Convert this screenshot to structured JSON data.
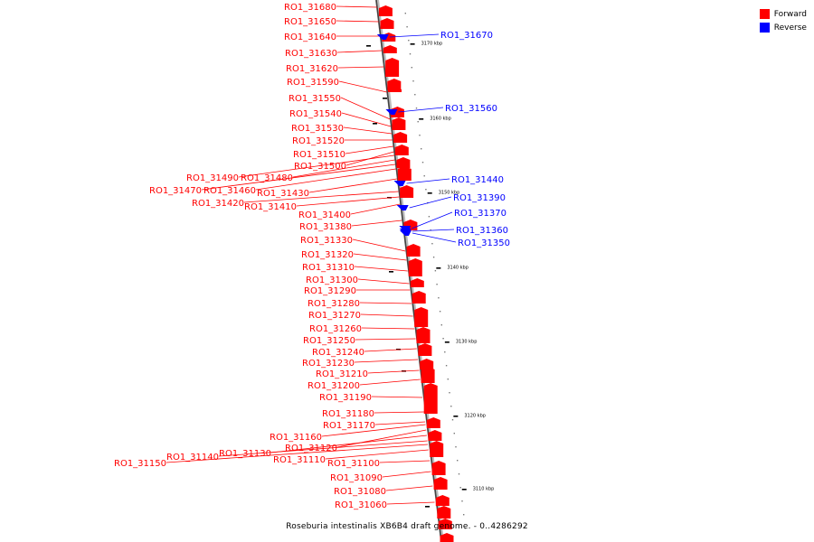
{
  "legend": {
    "forward": {
      "label": "Forward",
      "color": "#ff0000"
    },
    "reverse": {
      "label": "Reverse",
      "color": "#0000ff"
    }
  },
  "caption": "Roseburia intestinalis XB6B4 draft genome. - 0..4286292",
  "axis_ticks": [
    {
      "label": "3170 kbp"
    },
    {
      "label": "3160 kbp"
    },
    {
      "label": "3150 kbp"
    },
    {
      "label": "3140 kbp"
    },
    {
      "label": "3130 kbp"
    },
    {
      "label": "3120 kbp"
    },
    {
      "label": "3110 kbp"
    }
  ],
  "genes_forward": [
    "RO1_31680",
    "RO1_31650",
    "RO1_31640",
    "RO1_31630",
    "RO1_31620",
    "RO1_31590",
    "RO1_31550",
    "RO1_31540",
    "RO1_31530",
    "RO1_31520",
    "RO1_31510",
    "RO1_31500",
    "RO1_31490",
    "RO1_31480",
    "RO1_31470",
    "RO1_31460",
    "RO1_31430",
    "RO1_31420",
    "RO1_31410",
    "RO1_31400",
    "RO1_31380",
    "RO1_31330",
    "RO1_31320",
    "RO1_31310",
    "RO1_31300",
    "RO1_31290",
    "RO1_31280",
    "RO1_31270",
    "RO1_31260",
    "RO1_31250",
    "RO1_31240",
    "RO1_31230",
    "RO1_31210",
    "RO1_31200",
    "RO1_31190",
    "RO1_31180",
    "RO1_31170",
    "RO1_31160",
    "RO1_31120",
    "RO1_31130",
    "RO1_31140",
    "RO1_31150",
    "RO1_31110",
    "RO1_31100",
    "RO1_31090",
    "RO1_31080",
    "RO1_31060"
  ],
  "genes_reverse": [
    "RO1_31670",
    "RO1_31560",
    "RO1_31440",
    "RO1_31390",
    "RO1_31370",
    "RO1_31360",
    "RO1_31350"
  ]
}
